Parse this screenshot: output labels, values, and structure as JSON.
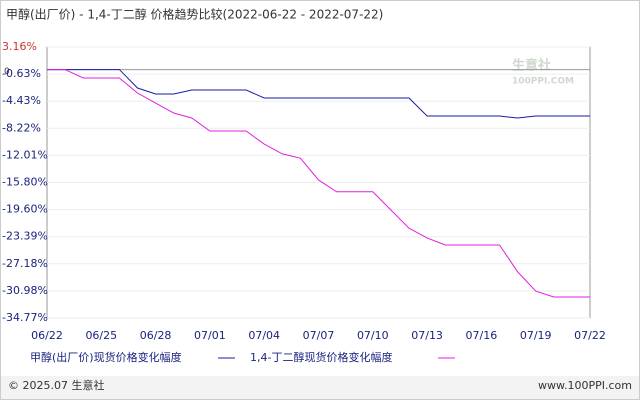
{
  "chart_data": {
    "type": "line",
    "title": "甲醇(出厂价) - 1,4-丁二醇 价格趋势比较(2022-06-22 - 2022-07-22)",
    "categories": [
      "06/22",
      null,
      null,
      "06/25",
      null,
      null,
      "06/28",
      null,
      null,
      "07/01",
      null,
      null,
      "07/04",
      null,
      null,
      "07/07",
      null,
      null,
      "07/10",
      null,
      null,
      "07/13",
      null,
      null,
      "07/16",
      null,
      null,
      "07/19",
      null,
      null,
      "07/22"
    ],
    "series": [
      {
        "name": "甲醇(出厂价)现货价格变化幅度",
        "color": "#1a1aa6",
        "values": [
          0,
          0,
          0,
          0,
          0,
          -2.58,
          -3.42,
          -3.42,
          -2.86,
          -2.86,
          -2.86,
          -2.86,
          -3.98,
          -3.98,
          -3.98,
          -3.98,
          -3.98,
          -3.98,
          -3.98,
          -3.98,
          -3.98,
          -6.5,
          -6.5,
          -6.5,
          -6.5,
          -6.5,
          -6.78,
          -6.5,
          -6.5,
          -6.5,
          -6.5
        ]
      },
      {
        "name": "1,4-丁二醇现货价格变化幅度",
        "color": "#e020e0",
        "values": [
          0,
          0,
          -1.18,
          -1.18,
          -1.18,
          -3.28,
          -4.68,
          -6.08,
          -6.78,
          -8.6,
          -8.6,
          -8.6,
          -10.42,
          -11.8,
          -12.4,
          -15.45,
          -17.1,
          -17.1,
          -17.1,
          -19.65,
          -22.2,
          -23.57,
          -24.55,
          -24.55,
          -24.55,
          -24.55,
          -28.3,
          -31,
          -31.83,
          -31.83,
          -31.83
        ]
      }
    ],
    "ylim": [
      -34.77,
      3.16
    ],
    "yticks": [
      {
        "value": 3.16,
        "label": "3.16%"
      },
      0,
      {
        "value": -0.63,
        "label": "-0.63%"
      },
      {
        "value": -4.43,
        "label": "-4.43%"
      },
      {
        "value": -8.22,
        "label": "-8.22%"
      },
      {
        "value": -12.01,
        "label": "-12.01%"
      },
      {
        "value": -15.8,
        "label": "-15.80%"
      },
      {
        "value": -19.6,
        "label": "-19.60%"
      },
      {
        "value": -23.39,
        "label": "-23.39%"
      },
      {
        "value": -27.18,
        "label": "-27.18%"
      },
      {
        "value": -30.98,
        "label": "-30.98%"
      },
      {
        "value": -34.77,
        "label": "-34.77%"
      }
    ],
    "grid": true,
    "watermark": "生意社",
    "watermark_url": "100PPI.COM",
    "copyright": "© 2025.07 生意社",
    "site": "www.100PPI.com"
  }
}
